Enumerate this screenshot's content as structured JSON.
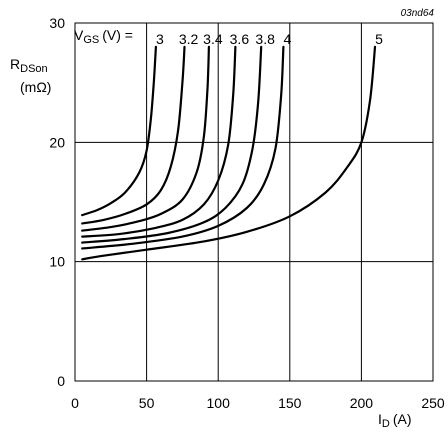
{
  "figure_code": "03nd64",
  "chart_data": {
    "type": "line",
    "xlabel": {
      "main": "I",
      "sub": "D",
      "unit": "(A)"
    },
    "ylabel": {
      "main": "R",
      "sub": "DSon",
      "unit": "(mΩ)"
    },
    "legend_prefix": {
      "main": "V",
      "sub": "GS",
      "rest": "(V) ="
    },
    "xlim": [
      0,
      250
    ],
    "ylim": [
      0,
      30
    ],
    "x_ticks": [
      "0",
      "50",
      "100",
      "150",
      "200",
      "250"
    ],
    "y_ticks": [
      "0",
      "10",
      "20",
      "30"
    ],
    "grid": true,
    "series": [
      {
        "name": "3",
        "x": [
          5,
          15,
          25,
          35,
          45,
          50,
          53,
          55,
          56.5
        ],
        "y": [
          13.9,
          14.3,
          14.9,
          15.8,
          17.5,
          19.3,
          22,
          25,
          28
        ]
      },
      {
        "name": "3.2",
        "x": [
          5,
          20,
          35,
          50,
          60,
          67,
          72,
          75,
          76.5
        ],
        "y": [
          13.2,
          13.5,
          14.0,
          14.8,
          16.0,
          18.0,
          21.0,
          25,
          28
        ]
      },
      {
        "name": "3.4",
        "x": [
          5,
          25,
          45,
          60,
          75,
          85,
          90,
          92.5,
          93.5
        ],
        "y": [
          12.6,
          12.9,
          13.4,
          14.0,
          15.2,
          17.5,
          20.5,
          24.5,
          28
        ]
      },
      {
        "name": "3.6",
        "x": [
          5,
          30,
          55,
          75,
          90,
          100,
          107,
          110.5,
          112
        ],
        "y": [
          12.1,
          12.3,
          12.8,
          13.5,
          14.8,
          16.8,
          19.8,
          24,
          28
        ]
      },
      {
        "name": "3.8",
        "x": [
          5,
          35,
          65,
          90,
          105,
          117,
          124,
          128,
          130
        ],
        "y": [
          11.6,
          11.9,
          12.4,
          13.3,
          14.5,
          16.5,
          19.5,
          23.5,
          28
        ]
      },
      {
        "name": "4",
        "x": [
          5,
          40,
          75,
          100,
          120,
          132,
          140,
          144,
          145.5
        ],
        "y": [
          11.1,
          11.5,
          12.1,
          13.0,
          14.5,
          16.5,
          19.5,
          24,
          28
        ]
      },
      {
        "name": "5",
        "x": [
          5,
          20,
          50,
          90,
          120,
          150,
          175,
          190,
          200,
          206,
          209.5
        ],
        "y": [
          10.2,
          10.5,
          11.0,
          11.7,
          12.5,
          13.8,
          15.8,
          17.9,
          20,
          23.5,
          28
        ]
      }
    ]
  }
}
